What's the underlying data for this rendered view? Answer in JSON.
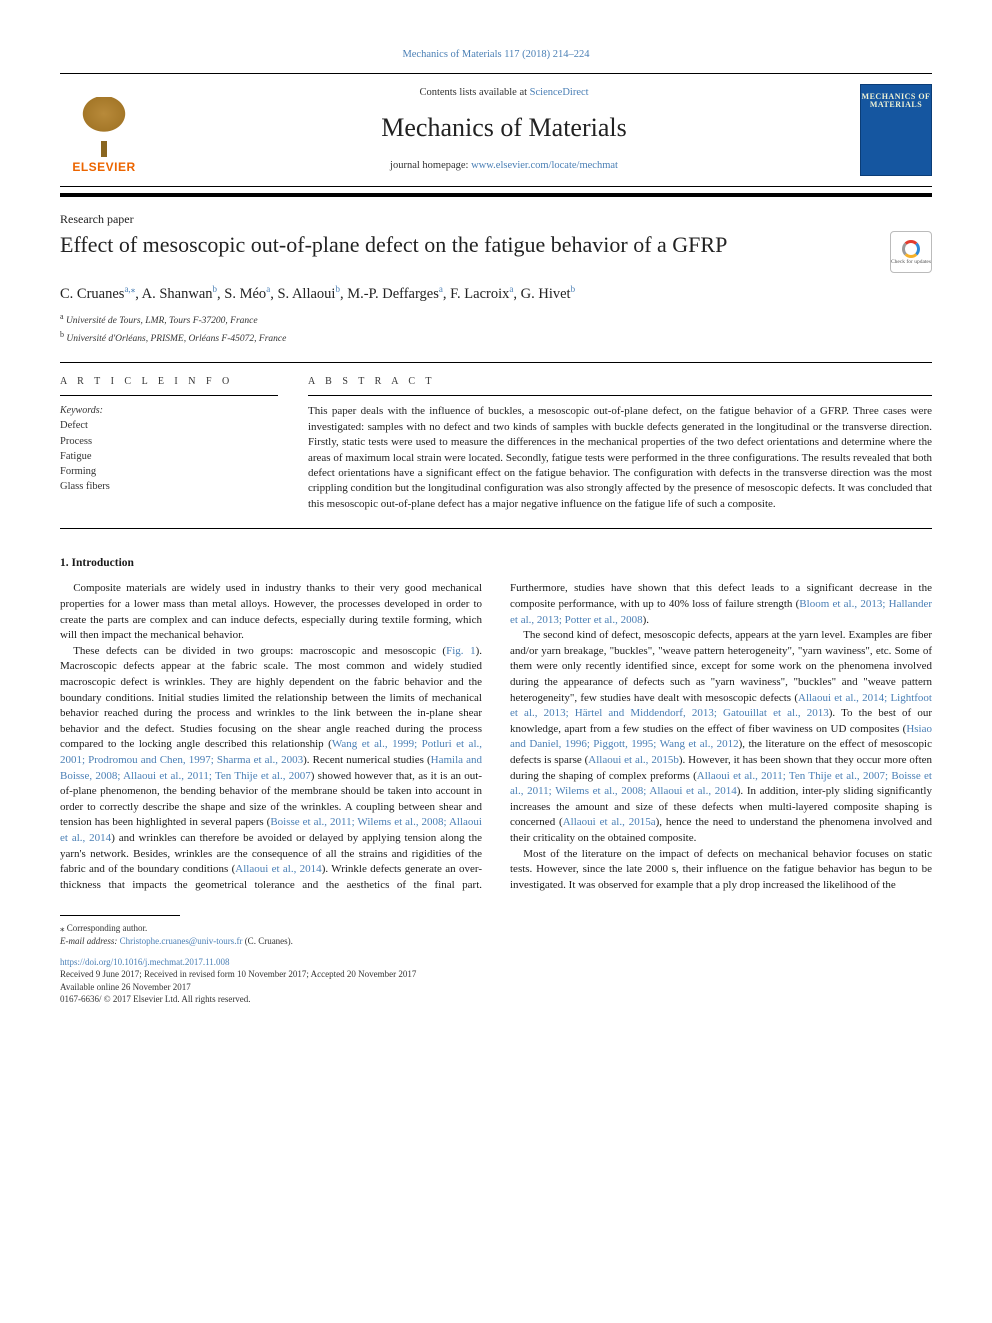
{
  "citation": "Mechanics of Materials 117 (2018) 214–224",
  "header": {
    "contents_prefix": "Contents lists available at ",
    "contents_link": "ScienceDirect",
    "journal": "Mechanics of Materials",
    "homepage_prefix": "journal homepage: ",
    "homepage_link": "www.elsevier.com/locate/mechmat",
    "elsevier_word": "ELSEVIER",
    "cover_text": "MECHANICS OF MATERIALS"
  },
  "paper_type": "Research paper",
  "title": "Effect of mesoscopic out-of-plane defect on the fatigue behavior of a GFRP",
  "crossmark": "Check for updates",
  "authors_html": "C. Cruanes<sup>a,</sup><sup class=\"star\">⁎</sup>, A. Shanwan<sup>b</sup>, S. Méo<sup>a</sup>, S. Allaoui<sup>b</sup>, M.-P. Deffarges<sup>a</sup>, F. Lacroix<sup>a</sup>, G. Hivet<sup>b</sup>",
  "affiliations": [
    "Université de Tours, LMR, Tours F-37200, France",
    "Université d'Orléans, PRISME, Orléans F-45072, France"
  ],
  "affiliation_marks": [
    "a",
    "b"
  ],
  "article_info_head": "A R T I C L E  I N F O",
  "abstract_head": "A B S T R A C T",
  "keywords_head": "Keywords:",
  "keywords": [
    "Defect",
    "Process",
    "Fatigue",
    "Forming",
    "Glass fibers"
  ],
  "abstract": "This paper deals with the influence of buckles, a mesoscopic out-of-plane defect, on the fatigue behavior of a GFRP. Three cases were investigated: samples with no defect and two kinds of samples with buckle defects generated in the longitudinal or the transverse direction. Firstly, static tests were used to measure the differences in the mechanical properties of the two defect orientations and determine where the areas of maximum local strain were located. Secondly, fatigue tests were performed in the three configurations. The results revealed that both defect orientations have a significant effect on the fatigue behavior. The configuration with defects in the transverse direction was the most crippling condition but the longitudinal configuration was also strongly affected by the presence of mesoscopic defects. It was concluded that this mesoscopic out-of-plane defect has a major negative influence on the fatigue life of such a composite.",
  "section1_title": "1. Introduction",
  "body_paragraphs": [
    "Composite materials are widely used in industry thanks to their very good mechanical properties for a lower mass than metal alloys. However, the processes developed in order to create the parts are complex and can induce defects, especially during textile forming, which will then impact the mechanical behavior.",
    "These defects can be divided in two groups: macroscopic and mesoscopic (<span class=\"ref-link\">Fig. 1</span>). Macroscopic defects appear at the fabric scale. The most common and widely studied macroscopic defect is wrinkles. They are highly dependent on the fabric behavior and the boundary conditions. Initial studies limited the relationship between the limits of mechanical behavior reached during the process and wrinkles to the link between the in-plane shear behavior and the defect. Studies focusing on the shear angle reached during the process compared to the locking angle described this relationship (<span class=\"ref-link\">Wang et al., 1999; Potluri et al., 2001; Prodromou and Chen, 1997; Sharma et al., 2003</span>). Recent numerical studies (<span class=\"ref-link\">Hamila and Boisse, 2008; Allaoui et al., 2011; Ten Thije et al., 2007</span>) showed however that, as it is an out-of-plane phenomenon, the bending behavior of the membrane should be taken into account in order to correctly describe the shape and size of the wrinkles. A coupling between shear and tension has been highlighted in several papers (<span class=\"ref-link\">Boisse et al., 2011; Wilems et al., 2008; Allaoui et al., 2014</span>) and wrinkles can therefore be avoided or delayed by applying tension along the yarn's network. Besides, wrinkles are the consequence of all the strains and rigidities of the fabric and of the boundary conditions (<span class=\"ref-link\">Allaoui et al., 2014</span>). Wrinkle defects generate an over-thickness that impacts the geometrical tolerance and the aesthetics of the final part. Furthermore, studies have shown that this defect leads to a significant decrease in the composite performance, with up to 40% loss of failure strength (<span class=\"ref-link\">Bloom et al., 2013; Hallander et al., 2013; Potter et al., 2008</span>).",
    "The second kind of defect, mesoscopic defects, appears at the yarn level. Examples are fiber and/or yarn breakage, \"buckles\", \"weave pattern heterogeneity\", \"yarn waviness\", etc. Some of them were only recently identified since, except for some work on the phenomena involved during the appearance of defects such as \"yarn waviness\", \"buckles\" and \"weave pattern heterogeneity\", few studies have dealt with mesoscopic defects (<span class=\"ref-link\">Allaoui et al., 2014; Lightfoot et al., 2013; Härtel and Middendorf, 2013; Gatouillat et al., 2013</span>). To the best of our knowledge, apart from a few studies on the effect of fiber waviness on UD composites (<span class=\"ref-link\">Hsiao and Daniel, 1996; Piggott, 1995; Wang et al., 2012</span>), the literature on the effect of mesoscopic defects is sparse (<span class=\"ref-link\">Allaoui et al., 2015b</span>). However, it has been shown that they occur more often during the shaping of complex preforms (<span class=\"ref-link\">Allaoui et al., 2011; Ten Thije et al., 2007; Boisse et al., 2011; Wilems et al., 2008; Allaoui et al., 2014</span>). In addition, inter-ply sliding significantly increases the amount and size of these defects when multi-layered composite shaping is concerned (<span class=\"ref-link\">Allaoui et al., 2015a</span>), hence the need to understand the phenomena involved and their criticality on the obtained composite.",
    "Most of the literature on the impact of defects on mechanical behavior focuses on static tests. However, since the late 2000 s, their influence on the fatigue behavior has begun to be investigated. It was observed for example that a ply drop increased the likelihood of the"
  ],
  "footnote": {
    "corresponding": "⁎ Corresponding author.",
    "email_label": "E-mail address: ",
    "email": "Christophe.cruanes@univ-tours.fr",
    "email_tail": " (C. Cruanes)."
  },
  "footer": {
    "doi": "https://doi.org/10.1016/j.mechmat.2017.11.008",
    "received": "Received 9 June 2017; Received in revised form 10 November 2017; Accepted 20 November 2017",
    "available": "Available online 26 November 2017",
    "copyright": "0167-6636/ © 2017 Elsevier Ltd. All rights reserved."
  }
}
